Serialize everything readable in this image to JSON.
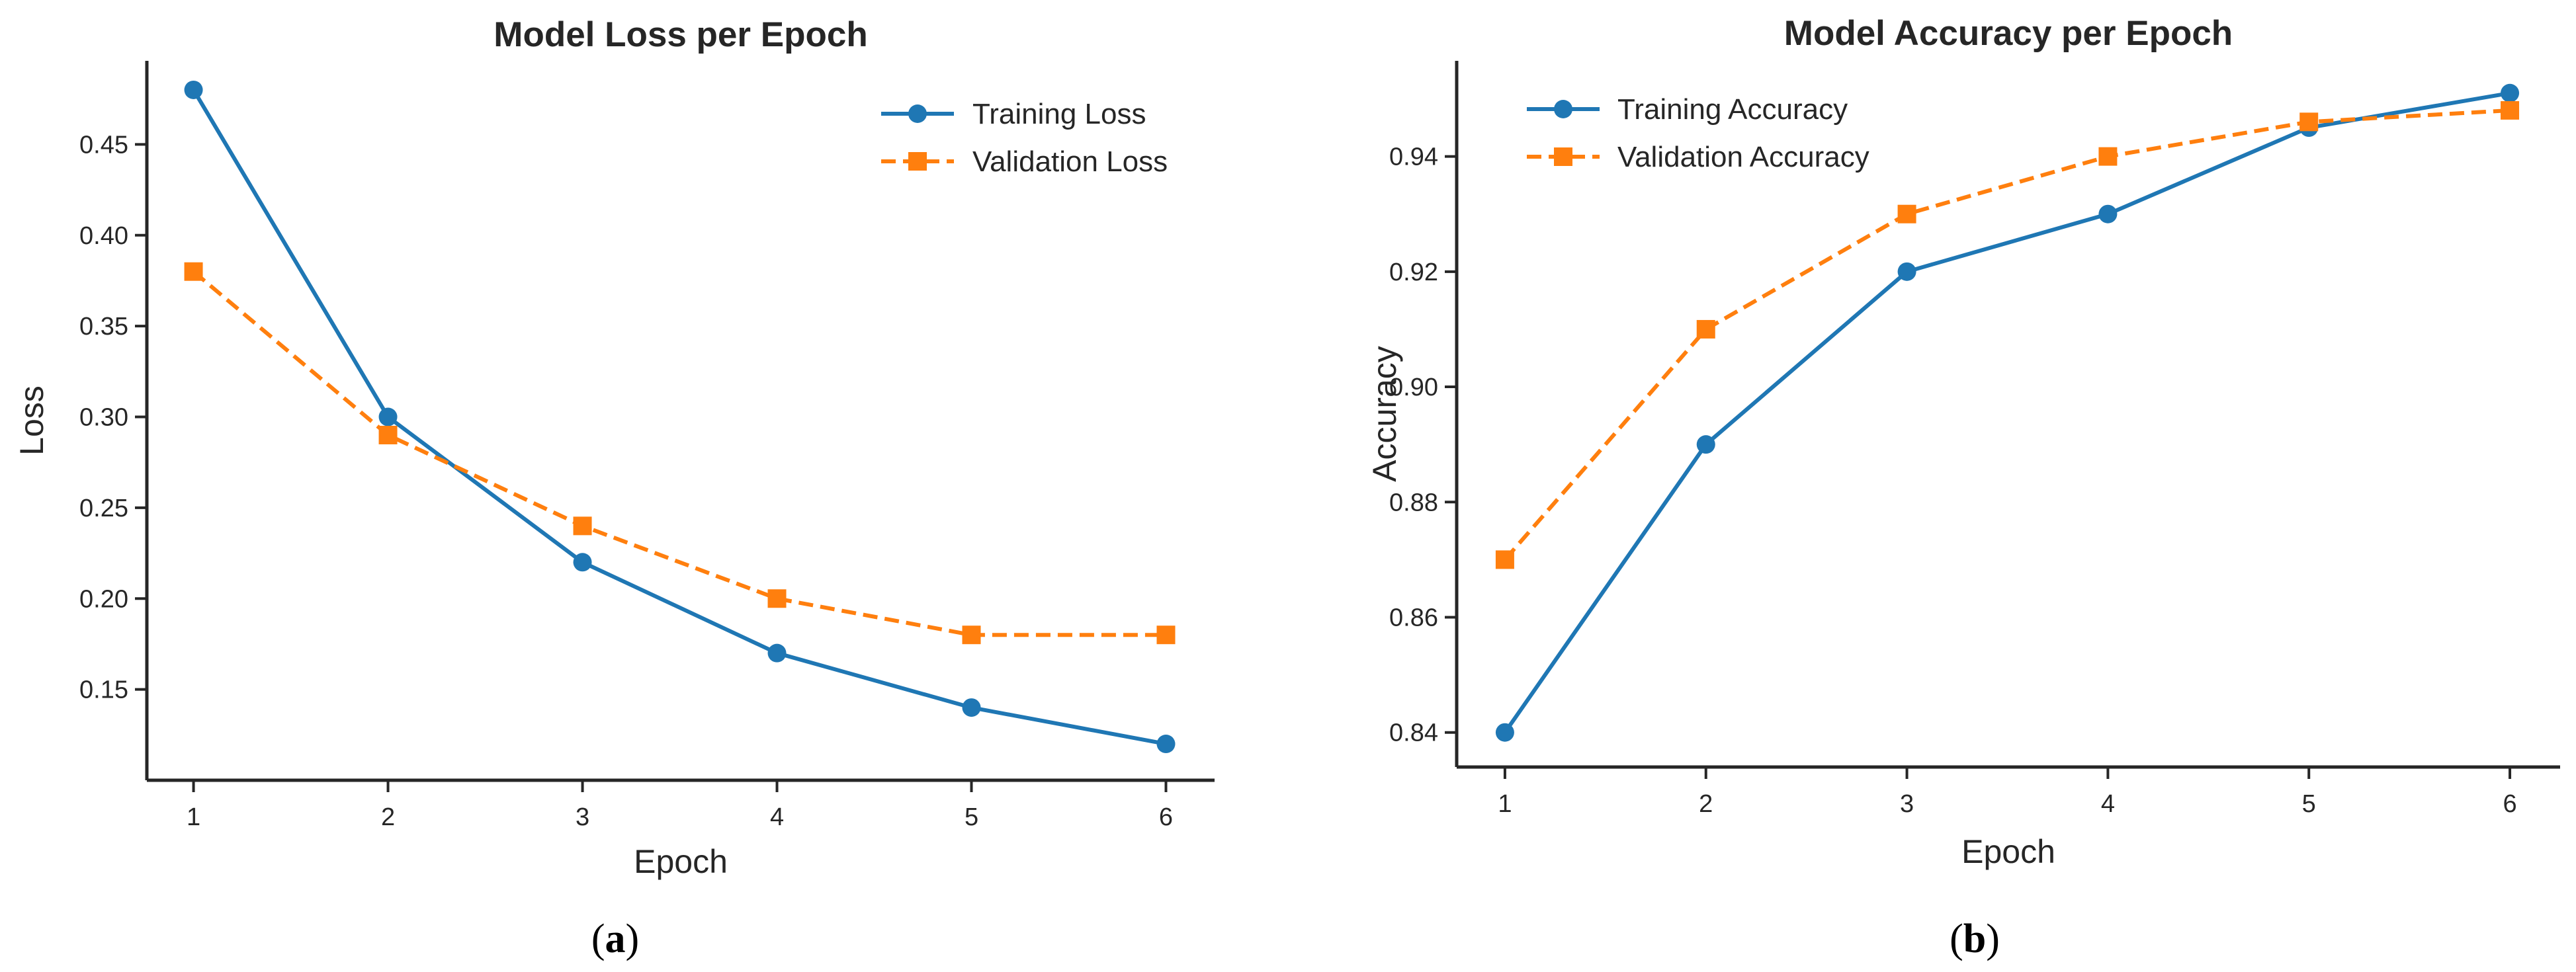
{
  "colors": {
    "training": "#1f77b4",
    "validation": "#ff7f0e"
  },
  "chart_data": [
    {
      "type": "line",
      "title": "Model Loss per Epoch",
      "xlabel": "Epoch",
      "ylabel": "Loss",
      "x": [
        1,
        2,
        3,
        4,
        5,
        6
      ],
      "xticks": [
        "1",
        "2",
        "3",
        "4",
        "5",
        "6"
      ],
      "xlim": [
        0.76,
        6.25
      ],
      "ylim": [
        0.1,
        0.496
      ],
      "yticks": [
        "0.15",
        "0.20",
        "0.25",
        "0.30",
        "0.35",
        "0.40",
        "0.45"
      ],
      "legend_position": "top-right",
      "caption": {
        "open": "(",
        "letter": "a",
        "close": ")"
      },
      "series": [
        {
          "name": "Training Loss",
          "marker": "circle",
          "dash": "solid",
          "values": [
            0.48,
            0.3,
            0.22,
            0.17,
            0.14,
            0.12
          ]
        },
        {
          "name": "Validation Loss",
          "marker": "square",
          "dash": "dashed",
          "values": [
            0.38,
            0.29,
            0.24,
            0.2,
            0.18,
            0.18
          ]
        }
      ]
    },
    {
      "type": "line",
      "title": "Model Accuracy per Epoch",
      "xlabel": "Epoch",
      "ylabel": "Accuracy",
      "x": [
        1,
        2,
        3,
        4,
        5,
        6
      ],
      "xticks": [
        "1",
        "2",
        "3",
        "4",
        "5",
        "6"
      ],
      "xlim": [
        0.76,
        6.25
      ],
      "ylim": [
        0.834,
        0.9566
      ],
      "yticks": [
        "0.84",
        "0.86",
        "0.88",
        "0.90",
        "0.92",
        "0.94"
      ],
      "legend_position": "top-left",
      "caption": {
        "open": "(",
        "letter": "b",
        "close": ")"
      },
      "series": [
        {
          "name": "Training Accuracy",
          "marker": "circle",
          "dash": "solid",
          "values": [
            0.84,
            0.89,
            0.92,
            0.93,
            0.945,
            0.951
          ]
        },
        {
          "name": "Validation Accuracy",
          "marker": "square",
          "dash": "dashed",
          "values": [
            0.87,
            0.91,
            0.93,
            0.94,
            0.946,
            0.948
          ]
        }
      ]
    }
  ]
}
